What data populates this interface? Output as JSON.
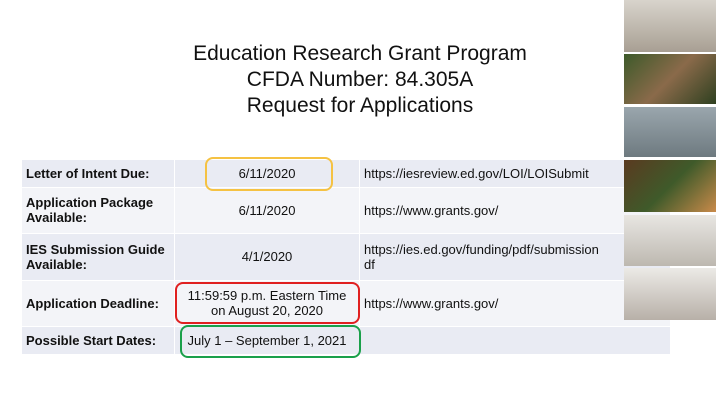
{
  "slide": {
    "title": "Education Research Grant Program",
    "subtitle": "CFDA Number: 84.305A",
    "subtitle2": "Request for Applications"
  },
  "table": {
    "rows": [
      [
        [
          "Letter of Intent Due:"
        ],
        [
          "6/11/2020"
        ],
        [
          "https://iesreview.ed.gov/LOI/LOISubmit"
        ]
      ],
      [
        [
          "Application Package",
          "Available:"
        ],
        [
          "6/11/2020"
        ],
        [
          "https://www.grants.gov/"
        ]
      ],
      [
        [
          "IES Submission Guide",
          "Available:"
        ],
        [
          "4/1/2020"
        ],
        [
          "https://ies.ed.gov/funding/pdf/submission",
          "df"
        ]
      ],
      [
        [
          "Application Deadline:"
        ],
        [
          "11:59:59 p.m. Eastern Time",
          "on August 20, 2020"
        ],
        [
          "https://www.grants.gov/"
        ]
      ],
      [
        [
          "Possible Start Dates:"
        ],
        [
          "July 1 – September 1, 2021"
        ],
        [
          ""
        ]
      ]
    ]
  }
}
